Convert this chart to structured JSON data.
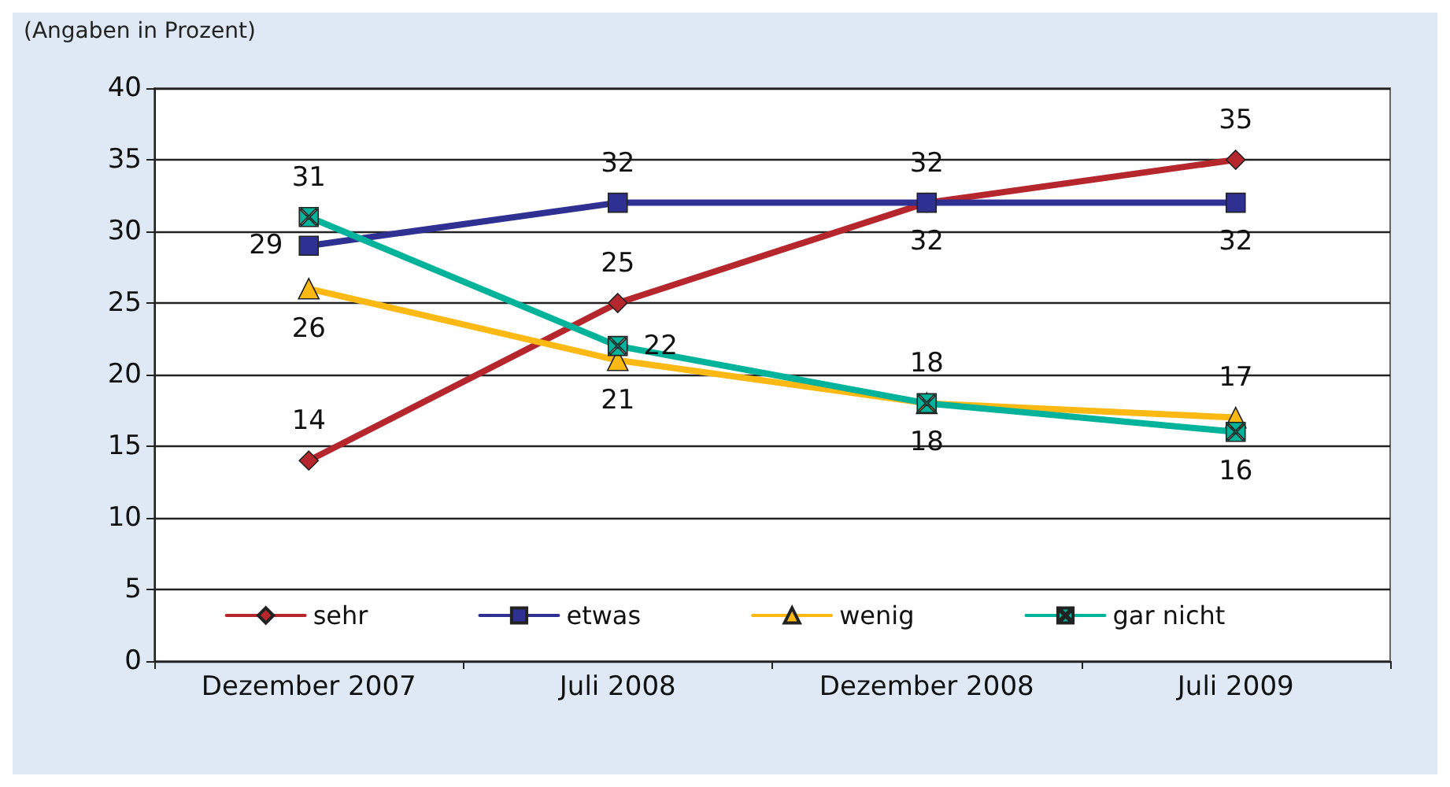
{
  "chart_data": {
    "type": "line",
    "title": "(Angaben in Prozent)",
    "categories": [
      "Dezember 2007",
      "Juli 2008",
      "Dezember 2008",
      "Juli 2009"
    ],
    "series": [
      {
        "name": "sehr",
        "color": "#b5272d",
        "marker": "diamond",
        "values": [
          14,
          25,
          32,
          35
        ]
      },
      {
        "name": "etwas",
        "color": "#2e3192",
        "marker": "square",
        "values": [
          29,
          32,
          32,
          32
        ]
      },
      {
        "name": "wenig",
        "color": "#fdb913",
        "marker": "triangle",
        "values": [
          26,
          21,
          18,
          17
        ]
      },
      {
        "name": "gar nicht",
        "color": "#00b39a",
        "marker": "cross",
        "values": [
          31,
          22,
          18,
          16
        ]
      }
    ],
    "ylim": [
      0,
      40
    ],
    "yticks": [
      0,
      5,
      10,
      15,
      20,
      25,
      30,
      35,
      40
    ],
    "grid": "y",
    "legend": "bottom",
    "data_labels": true
  }
}
